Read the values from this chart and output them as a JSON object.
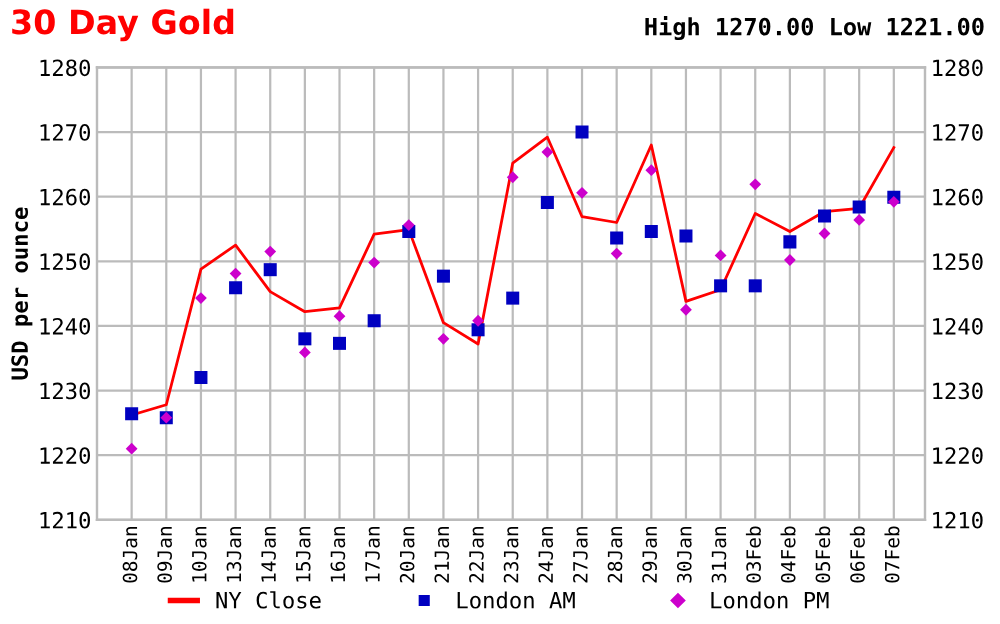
{
  "chart_data": {
    "type": "line",
    "title": "30 Day Gold",
    "subtitle": "High 1270.00 Low 1221.00",
    "ylabel": "USD per ounce",
    "categories": [
      "08Jan",
      "09Jan",
      "10Jan",
      "13Jan",
      "14Jan",
      "15Jan",
      "16Jan",
      "17Jan",
      "20Jan",
      "21Jan",
      "22Jan",
      "23Jan",
      "24Jan",
      "27Jan",
      "28Jan",
      "29Jan",
      "30Jan",
      "31Jan",
      "03Feb",
      "04Feb",
      "05Feb",
      "06Feb",
      "07Feb"
    ],
    "series": [
      {
        "name": "NY Close",
        "color": "#ff0000",
        "values": [
          1226.2,
          1227.8,
          1248.8,
          1252.5,
          1245.3,
          1242.2,
          1242.8,
          1254.2,
          1254.9,
          1240.5,
          1237.2,
          1265.2,
          1269.2,
          1256.9,
          1256.0,
          1268.0,
          1243.8,
          1245.6,
          1257.4,
          1254.6,
          1257.7,
          1258.2,
          1267.6
        ]
      },
      {
        "name": "London AM",
        "type": "scatter",
        "marker": "square",
        "color": "#0000c0",
        "values": [
          1226.4,
          1225.8,
          1232.0,
          1245.9,
          1248.7,
          1238.0,
          1237.3,
          1240.8,
          1254.6,
          1247.7,
          1239.4,
          1244.3,
          1259.1,
          1270.0,
          1253.6,
          1254.6,
          1253.9,
          1246.2,
          1246.2,
          1253.0,
          1257.0,
          1258.4,
          1259.9
        ]
      },
      {
        "name": "London PM",
        "type": "scatter",
        "marker": "diamond",
        "color": "#cc00cc",
        "values": [
          1221.0,
          1225.8,
          1244.3,
          1248.1,
          1251.5,
          1235.9,
          1241.5,
          1249.8,
          1255.6,
          1238.0,
          1240.8,
          1263.0,
          1266.9,
          1260.6,
          1251.2,
          1264.1,
          1242.5,
          1250.9,
          1261.9,
          1250.2,
          1254.3,
          1256.4,
          1259.2
        ]
      }
    ],
    "ylim": [
      1210,
      1280
    ],
    "yticks": [
      1210,
      1220,
      1230,
      1240,
      1250,
      1260,
      1270,
      1280
    ],
    "y2lim": [
      1210,
      1280
    ],
    "y2ticks": [
      1210,
      1220,
      1230,
      1240,
      1250,
      1260,
      1270,
      1280
    ],
    "grid": true,
    "legend": "bottom"
  }
}
